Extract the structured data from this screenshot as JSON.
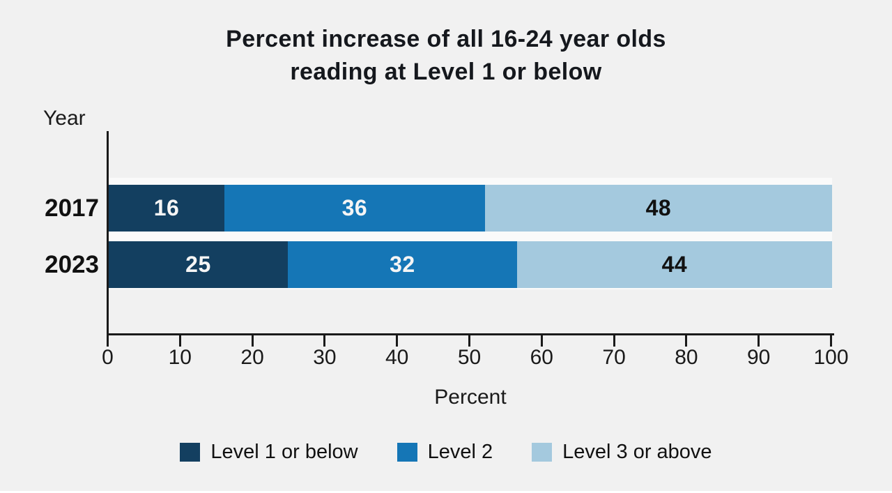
{
  "chart_data": {
    "type": "bar",
    "orientation": "horizontal",
    "stacked": true,
    "title": "Percent increase of all 16-24 year olds reading at Level 1 or below",
    "title_lines": [
      "Percent increase of all 16-24 year olds",
      "reading at Level 1 or below"
    ],
    "ylabel": "Year",
    "xlabel": "Percent",
    "categories": [
      "2017",
      "2023"
    ],
    "series": [
      {
        "name": "Level 1 or below",
        "color": "#133f60",
        "label_color": "#f5f5f5",
        "values": [
          16,
          25
        ]
      },
      {
        "name": "Level 2",
        "color": "#1576b6",
        "label_color": "#f5f5f5",
        "values": [
          36,
          32
        ]
      },
      {
        "name": "Level 3 or above",
        "color": "#a4c9de",
        "label_color": "#111111",
        "values": [
          48,
          44
        ]
      }
    ],
    "xlim": [
      0,
      100
    ],
    "xticks": [
      0,
      10,
      20,
      30,
      40,
      50,
      60,
      70,
      80,
      90,
      100
    ],
    "legend": {
      "position": "bottom"
    },
    "colors": {
      "background": "#f1f1f1",
      "plot_gap": "#fafafa",
      "axis": "#1a1a1a"
    }
  }
}
